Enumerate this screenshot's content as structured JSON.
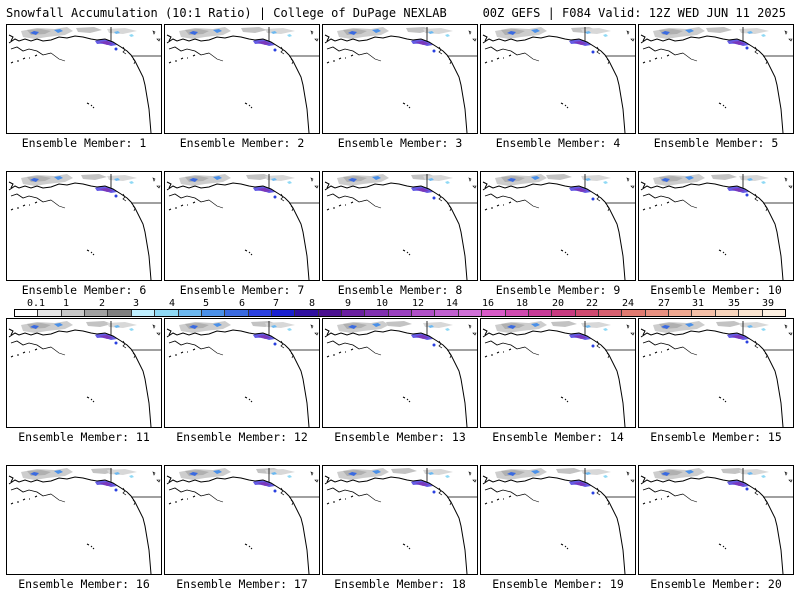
{
  "header": {
    "title": "Snowfall Accumulation (10:1 Ratio) | College of DuPage NEXLAB",
    "run_info": "00Z GEFS | F084 Valid: 12Z WED JUN 11 2025"
  },
  "members": [
    {
      "label": "Ensemble Member: 1"
    },
    {
      "label": "Ensemble Member: 2"
    },
    {
      "label": "Ensemble Member: 3"
    },
    {
      "label": "Ensemble Member: 4"
    },
    {
      "label": "Ensemble Member: 5"
    },
    {
      "label": "Ensemble Member: 6"
    },
    {
      "label": "Ensemble Member: 7"
    },
    {
      "label": "Ensemble Member: 8"
    },
    {
      "label": "Ensemble Member: 9"
    },
    {
      "label": "Ensemble Member: 10"
    },
    {
      "label": "Ensemble Member: 11"
    },
    {
      "label": "Ensemble Member: 12"
    },
    {
      "label": "Ensemble Member: 13"
    },
    {
      "label": "Ensemble Member: 14"
    },
    {
      "label": "Ensemble Member: 15"
    },
    {
      "label": "Ensemble Member: 16"
    },
    {
      "label": "Ensemble Member: 17"
    },
    {
      "label": "Ensemble Member: 18"
    },
    {
      "label": "Ensemble Member: 19"
    },
    {
      "label": "Ensemble Member: 20"
    }
  ],
  "colorbar": {
    "labels": [
      "0.1",
      "1",
      "2",
      "3",
      "4",
      "5",
      "6",
      "7",
      "8",
      "9",
      "10",
      "12",
      "14",
      "16",
      "18",
      "20",
      "22",
      "24",
      "27",
      "31",
      "35",
      "39"
    ],
    "colors": [
      "#ffffff",
      "#e6e6e6",
      "#c8c8c8",
      "#a0a0a0",
      "#7f7f7f",
      "#bfefff",
      "#8fd9f5",
      "#6cb8f0",
      "#4a90e8",
      "#3a6ae0",
      "#2a40e0",
      "#1a20d0",
      "#3010a0",
      "#4a1090",
      "#6a20a0",
      "#8030b0",
      "#9a40c0",
      "#b050c8",
      "#c060d0",
      "#d070d8",
      "#d85ac8",
      "#d04ab0",
      "#c83a98",
      "#c83a80",
      "#d04a70",
      "#d86070",
      "#e07a70",
      "#e89080",
      "#f0a890",
      "#f5c0a8",
      "#f8d4bc",
      "#fae4d0",
      "#fdf0e2"
    ]
  }
}
